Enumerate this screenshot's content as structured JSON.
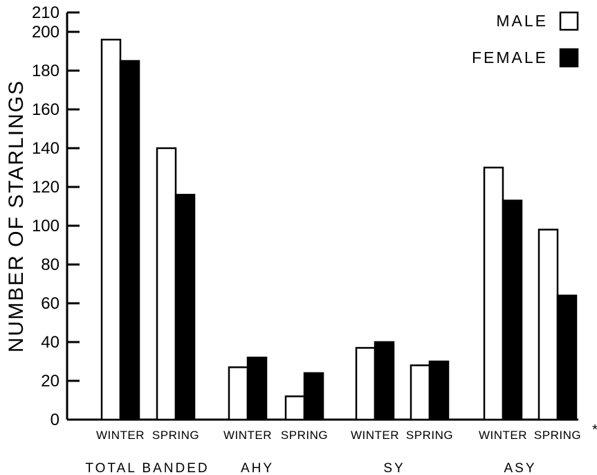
{
  "chart_data": {
    "type": "bar",
    "ylabel": "NUMBER OF STARLINGS",
    "ylim": [
      0,
      210
    ],
    "yticks": [
      0,
      20,
      40,
      60,
      80,
      100,
      120,
      140,
      160,
      180,
      200,
      210
    ],
    "grid": false,
    "legend_position": "top-right",
    "groups": [
      "TOTAL BANDED",
      "AHY",
      "SY",
      "ASY"
    ],
    "categories": [
      "WINTER",
      "SPRING",
      "WINTER",
      "SPRING",
      "WINTER",
      "SPRING",
      "WINTER",
      "SPRING"
    ],
    "category_groups": [
      0,
      0,
      1,
      1,
      2,
      2,
      3,
      3
    ],
    "category_suffix": [
      "",
      "",
      "",
      "",
      "",
      "",
      "",
      "*"
    ],
    "series": [
      {
        "name": "MALE",
        "fill": "#ffffff",
        "values": [
          196,
          140,
          27,
          12,
          37,
          28,
          130,
          98
        ]
      },
      {
        "name": "FEMALE",
        "fill": "#000000",
        "values": [
          185,
          116,
          32,
          24,
          40,
          30,
          113,
          64
        ]
      }
    ]
  }
}
